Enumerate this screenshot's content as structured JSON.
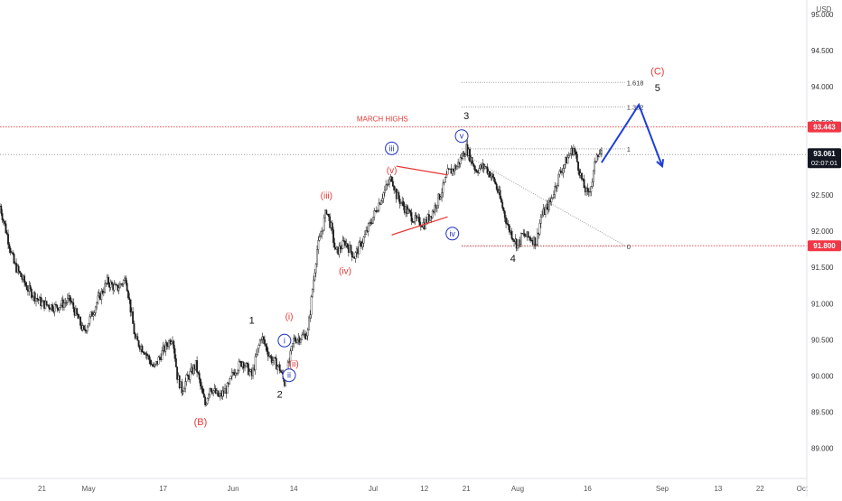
{
  "colors": {
    "background": "#ffffff",
    "candle": "#1a1a1a",
    "axis_text": "#555555",
    "grid_label": "#333333",
    "red_label": "#e53935",
    "blue_label": "#2233bb",
    "forecast_arrow": "#1e3fd9",
    "price_badge_dark": "#131722",
    "level_badge_red": "#f23645",
    "fib_line": "#9e9e9e",
    "march_line": "#ef5350"
  },
  "chart_data": {
    "type": "candlestick",
    "title": "",
    "currency": "USD",
    "x_axis": {
      "tick_labels": [
        "21",
        "May",
        "17",
        "Jun",
        "14",
        "Jul",
        "12",
        "21",
        "Aug",
        "16",
        "Sep",
        "13",
        "22",
        "Oct"
      ],
      "tick_dates": [
        "2021-04-21",
        "2021-05-01",
        "2021-05-17",
        "2021-06-01",
        "2021-06-14",
        "2021-07-01",
        "2021-07-12",
        "2021-07-21",
        "2021-08-01",
        "2021-08-16",
        "2021-09-01",
        "2021-09-13",
        "2021-09-22",
        "2021-10-01"
      ],
      "range": [
        "2021-04-12",
        "2021-10-02"
      ]
    },
    "y_axis": {
      "tick_values": [
        89.0,
        89.5,
        90.0,
        90.5,
        91.0,
        91.5,
        92.0,
        92.5,
        93.0,
        93.5,
        94.0,
        94.5,
        95.0
      ],
      "tick_labels": [
        "89.000",
        "89.500",
        "90.000",
        "90.500",
        "91.000",
        "91.500",
        "92.000",
        "92.500",
        "93.000",
        "93.500",
        "94.000",
        "94.500",
        "95.000"
      ],
      "range": [
        88.58,
        95.2
      ],
      "unit_label": "USD"
    },
    "price_path": [
      [
        "2021-04-12",
        92.35
      ],
      [
        "2021-04-15",
        91.55
      ],
      [
        "2021-04-18",
        91.2
      ],
      [
        "2021-04-21",
        91.0
      ],
      [
        "2021-04-24",
        90.95
      ],
      [
        "2021-04-27",
        91.05
      ],
      [
        "2021-04-30",
        90.6
      ],
      [
        "2021-05-03",
        91.05
      ],
      [
        "2021-05-05",
        91.3
      ],
      [
        "2021-05-07",
        91.2
      ],
      [
        "2021-05-09",
        91.35
      ],
      [
        "2021-05-11",
        90.5
      ],
      [
        "2021-05-13",
        90.35
      ],
      [
        "2021-05-15",
        90.1
      ],
      [
        "2021-05-17",
        90.35
      ],
      [
        "2021-05-19",
        90.55
      ],
      [
        "2021-05-20",
        90.0
      ],
      [
        "2021-05-21",
        89.8
      ],
      [
        "2021-05-22",
        89.95
      ],
      [
        "2021-05-24",
        90.15
      ],
      [
        "2021-05-25",
        89.85
      ],
      [
        "2021-05-26",
        89.6
      ],
      [
        "2021-05-27",
        89.85
      ],
      [
        "2021-05-29",
        89.7
      ],
      [
        "2021-05-31",
        89.85
      ],
      [
        "2021-06-01",
        90.05
      ],
      [
        "2021-06-03",
        90.2
      ],
      [
        "2021-06-05",
        90.0
      ],
      [
        "2021-06-07",
        90.55
      ],
      [
        "2021-06-09",
        90.25
      ],
      [
        "2021-06-11",
        90.1
      ],
      [
        "2021-06-12",
        89.9
      ],
      [
        "2021-06-13",
        90.2
      ],
      [
        "2021-06-14",
        90.5
      ],
      [
        "2021-06-16",
        90.55
      ],
      [
        "2021-06-17",
        90.6
      ],
      [
        "2021-06-18",
        91.2
      ],
      [
        "2021-06-19",
        91.75
      ],
      [
        "2021-06-20",
        92.0
      ],
      [
        "2021-06-21",
        92.3
      ],
      [
        "2021-06-22",
        92.05
      ],
      [
        "2021-06-23",
        91.7
      ],
      [
        "2021-06-25",
        91.85
      ],
      [
        "2021-06-27",
        91.65
      ],
      [
        "2021-06-29",
        91.9
      ],
      [
        "2021-07-01",
        92.2
      ],
      [
        "2021-07-03",
        92.5
      ],
      [
        "2021-07-05",
        92.75
      ],
      [
        "2021-07-06",
        92.5
      ],
      [
        "2021-07-08",
        92.3
      ],
      [
        "2021-07-10",
        92.15
      ],
      [
        "2021-07-12",
        92.1
      ],
      [
        "2021-07-14",
        92.3
      ],
      [
        "2021-07-16",
        92.6
      ],
      [
        "2021-07-17",
        92.8
      ],
      [
        "2021-07-19",
        92.9
      ],
      [
        "2021-07-21",
        93.15
      ],
      [
        "2021-07-23",
        92.85
      ],
      [
        "2021-07-25",
        92.9
      ],
      [
        "2021-07-27",
        92.7
      ],
      [
        "2021-07-28",
        92.5
      ],
      [
        "2021-07-30",
        92.05
      ],
      [
        "2021-08-01",
        91.8
      ],
      [
        "2021-08-02",
        91.95
      ],
      [
        "2021-08-04",
        91.9
      ],
      [
        "2021-08-05",
        91.85
      ],
      [
        "2021-08-06",
        92.2
      ],
      [
        "2021-08-08",
        92.4
      ],
      [
        "2021-08-10",
        92.8
      ],
      [
        "2021-08-12",
        93.05
      ],
      [
        "2021-08-13",
        93.15
      ],
      [
        "2021-08-14",
        92.9
      ],
      [
        "2021-08-15",
        92.65
      ],
      [
        "2021-08-16",
        92.5
      ],
      [
        "2021-08-17",
        92.7
      ],
      [
        "2021-08-18",
        93.1
      ],
      [
        "2021-08-19",
        93.06
      ]
    ],
    "levels": [
      {
        "id": "march-highs",
        "label": "MARCH HIGHS",
        "value": 93.443,
        "value_label": "93.443",
        "style": "red-dotted"
      },
      {
        "id": "last-price",
        "value": 93.061,
        "value_label": "93.061",
        "sub_label": "02:07:01",
        "style": "gray-dotted"
      },
      {
        "id": "low-level",
        "value": 91.8,
        "value_label": "91.800",
        "style": "red-dotted"
      }
    ],
    "fib_levels": [
      {
        "label": "1.618",
        "value": 94.06
      },
      {
        "label": "1.382",
        "value": 93.72
      },
      {
        "label": "1",
        "value": 93.14
      },
      {
        "label": "0",
        "value": 91.79
      }
    ],
    "fib_range": [
      "2021-07-20",
      "2021-08-24"
    ],
    "forecast_path": [
      [
        "2021-08-19",
        92.95
      ],
      [
        "2021-08-27",
        93.75
      ],
      [
        "2021-09-01",
        92.9
      ]
    ],
    "trendlines": [
      {
        "color": "red",
        "from": [
          "2021-07-05",
          91.95
        ],
        "to": [
          "2021-07-17",
          92.2
        ]
      },
      {
        "color": "red",
        "from": [
          "2021-07-06",
          92.9
        ],
        "to": [
          "2021-07-17",
          92.78
        ]
      },
      {
        "color": "gray-dotted",
        "from": [
          "2021-07-21",
          93.05
        ],
        "to": [
          "2021-08-24",
          91.8
        ]
      }
    ],
    "wave_labels": [
      {
        "text": "(B)",
        "x": "2021-05-25",
        "y": 89.32,
        "color": "red",
        "circled": false
      },
      {
        "text": "1",
        "x": "2021-06-05",
        "y": 90.72,
        "color": "black",
        "circled": false
      },
      {
        "text": "2",
        "x": "2021-06-11",
        "y": 89.7,
        "color": "black",
        "circled": false
      },
      {
        "text": "i",
        "x": "2021-06-12",
        "y": 90.45,
        "color": "blue",
        "circled": true
      },
      {
        "text": "ii",
        "x": "2021-06-13",
        "y": 89.97,
        "color": "blue",
        "circled": true
      },
      {
        "text": "(i)",
        "x": "2021-06-13",
        "y": 90.78,
        "color": "red",
        "circled": false
      },
      {
        "text": "(ii)",
        "x": "2021-06-14",
        "y": 90.12,
        "color": "red",
        "circled": false
      },
      {
        "text": "(iii)",
        "x": "2021-06-21",
        "y": 92.45,
        "color": "red",
        "circled": false
      },
      {
        "text": "(iv)",
        "x": "2021-06-25",
        "y": 91.41,
        "color": "red",
        "circled": false
      },
      {
        "text": "(v)",
        "x": "2021-07-05",
        "y": 92.8,
        "color": "red",
        "circled": false
      },
      {
        "text": "iii",
        "x": "2021-07-05",
        "y": 93.11,
        "color": "blue",
        "circled": true
      },
      {
        "text": "iv",
        "x": "2021-07-18",
        "y": 91.93,
        "color": "blue",
        "circled": true
      },
      {
        "text": "v",
        "x": "2021-07-20",
        "y": 93.28,
        "color": "blue",
        "circled": true
      },
      {
        "text": "3",
        "x": "2021-07-21",
        "y": 93.55,
        "color": "black",
        "circled": false
      },
      {
        "text": "4",
        "x": "2021-07-31",
        "y": 91.58,
        "color": "black",
        "circled": false
      },
      {
        "text": "(C)",
        "x": "2021-08-31",
        "y": 94.17,
        "color": "red",
        "circled": false
      },
      {
        "text": "5",
        "x": "2021-08-31",
        "y": 93.94,
        "color": "black",
        "circled": false
      }
    ]
  }
}
